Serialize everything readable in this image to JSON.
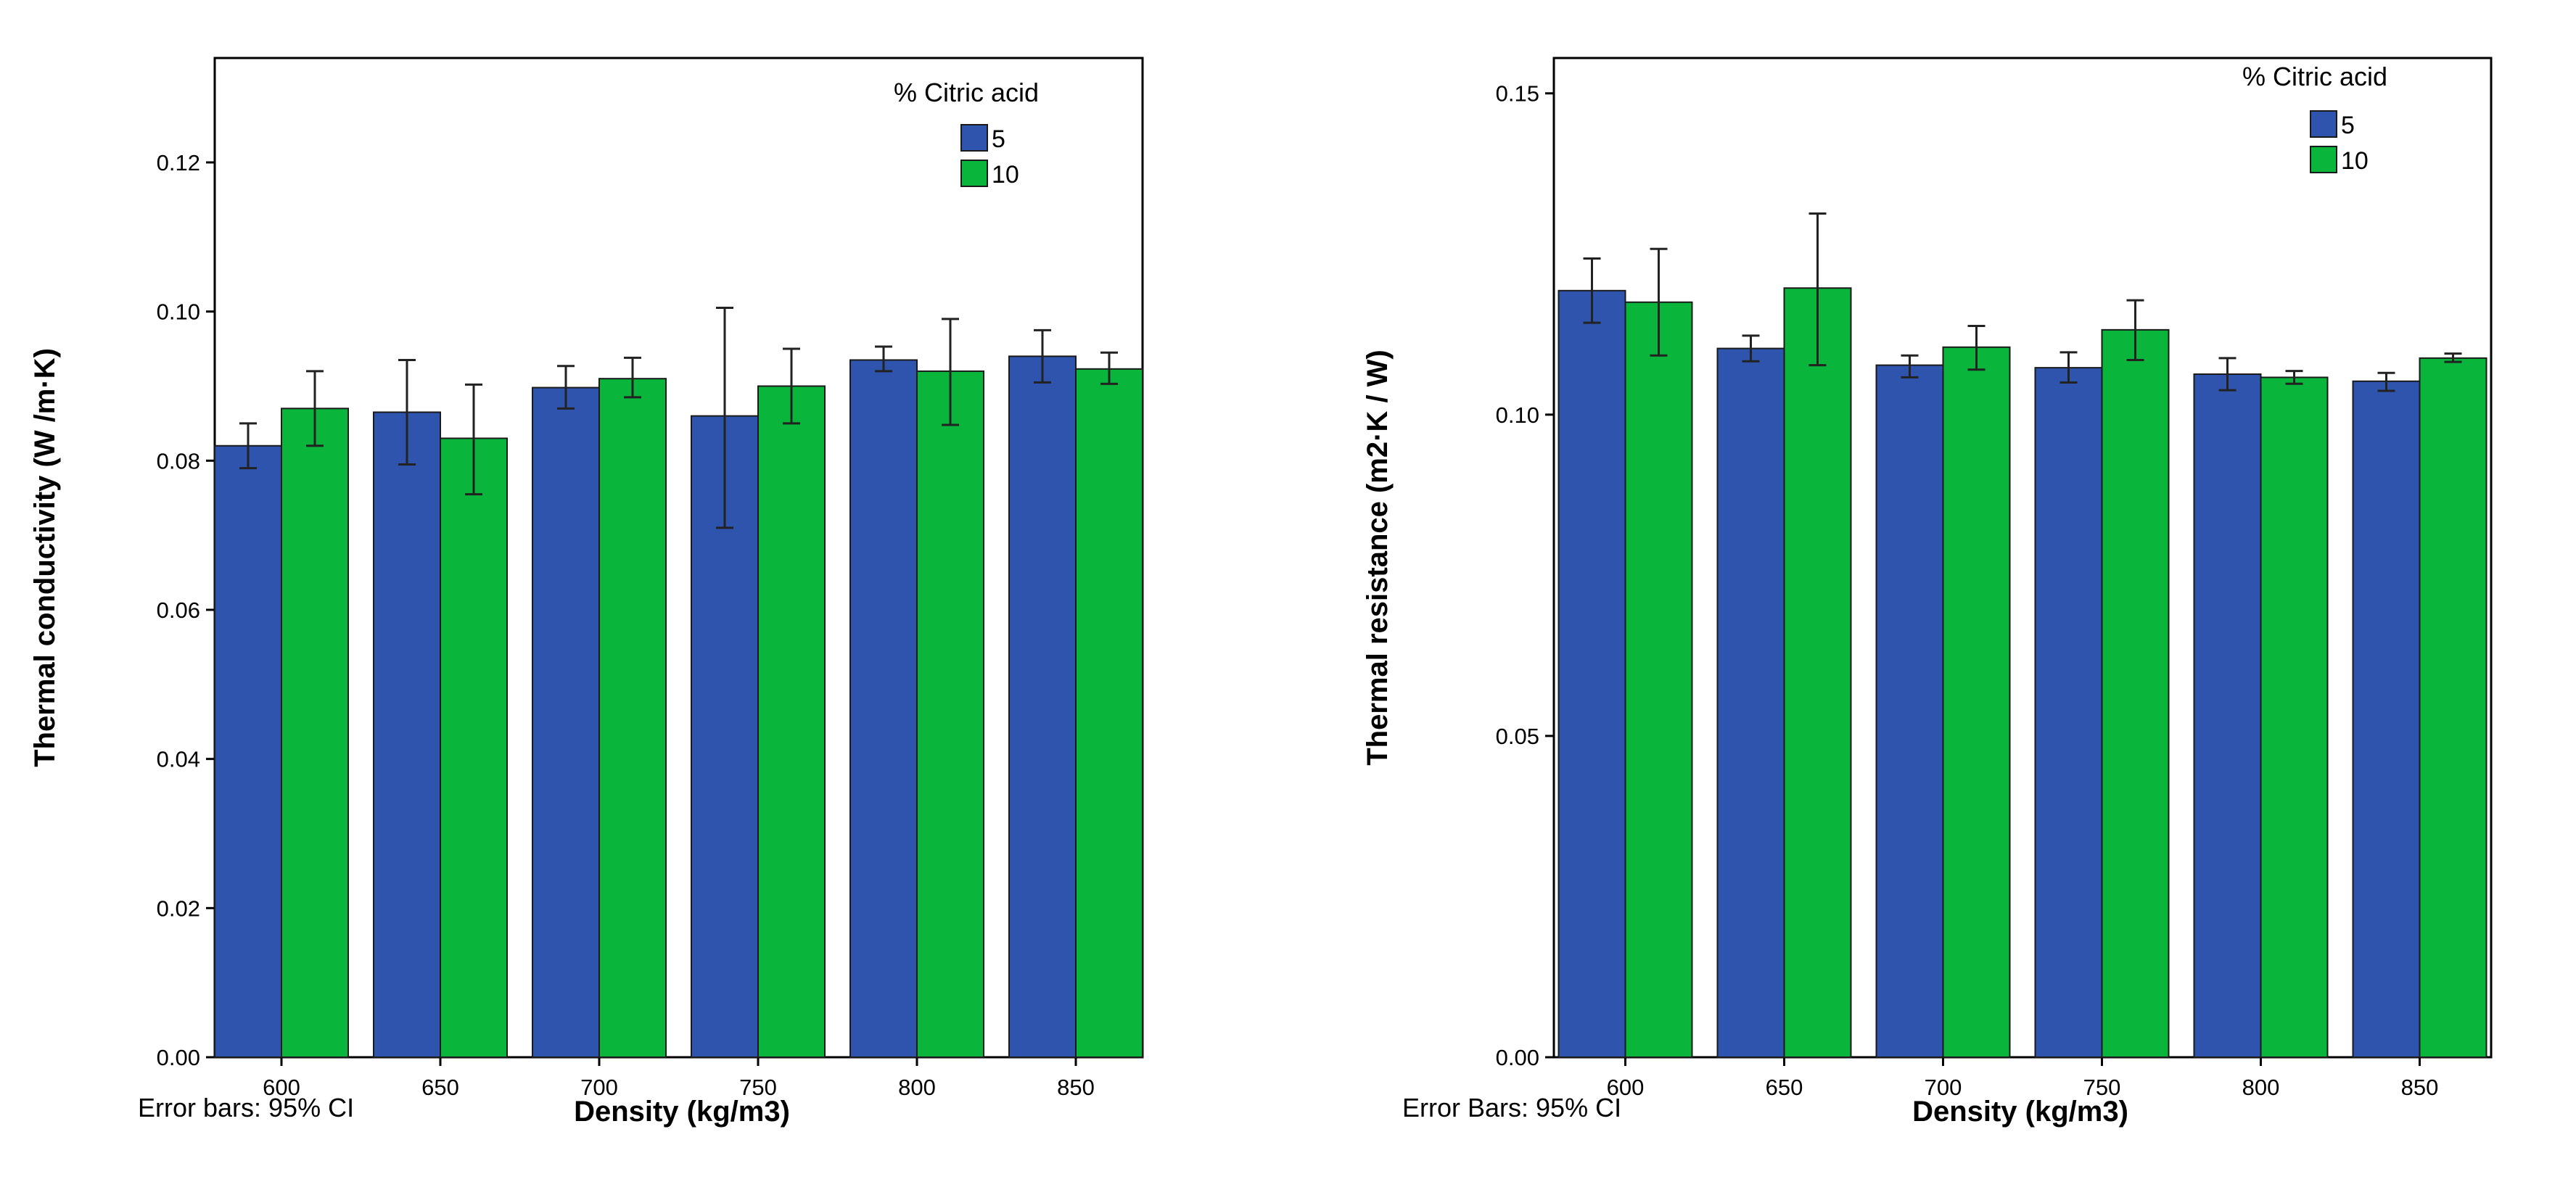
{
  "figure": {
    "panel_count": 2
  },
  "chart_data": [
    {
      "type": "bar",
      "title": "",
      "xlabel": "Density (kg/m3)",
      "ylabel": "Thermal conductivity (W /m·K)",
      "categories": [
        "600",
        "650",
        "700",
        "750",
        "800",
        "850"
      ],
      "ylim": [
        0,
        0.134
      ],
      "yticks": [
        0.0,
        0.02,
        0.04,
        0.06,
        0.08,
        0.1,
        0.12
      ],
      "ytick_labels": [
        "0.00",
        "0.02",
        "0.04",
        "0.06",
        "0.08",
        "0.10",
        "0.12"
      ],
      "grid": false,
      "legend": {
        "title": "% Citric acid",
        "position": "top-right"
      },
      "footnote": "Error bars: 95% CI",
      "series": [
        {
          "name": "5",
          "color": "#2E54AE",
          "values": [
            0.082,
            0.0865,
            0.0898,
            0.086,
            0.0935,
            0.094
          ],
          "ci_low": [
            0.079,
            0.0795,
            0.087,
            0.071,
            0.092,
            0.0905
          ],
          "ci_high": [
            0.085,
            0.0935,
            0.0927,
            0.1005,
            0.0953,
            0.0975
          ]
        },
        {
          "name": "10",
          "color": "#0AB53C",
          "values": [
            0.087,
            0.083,
            0.091,
            0.09,
            0.092,
            0.0923
          ],
          "ci_low": [
            0.082,
            0.0755,
            0.0885,
            0.085,
            0.0848,
            0.0903
          ],
          "ci_high": [
            0.092,
            0.0902,
            0.0938,
            0.095,
            0.099,
            0.0945
          ]
        }
      ]
    },
    {
      "type": "bar",
      "title": "",
      "xlabel": "Density (kg/m3)",
      "ylabel": "Thermal resistance (m2·K / W)",
      "categories": [
        "600",
        "650",
        "700",
        "750",
        "800",
        "850"
      ],
      "ylim": [
        0,
        0.1555
      ],
      "yticks": [
        0.0,
        0.05,
        0.1,
        0.15
      ],
      "ytick_labels": [
        "0.00",
        "0.05",
        "0.10",
        "0.15"
      ],
      "grid": false,
      "legend": {
        "title": "% Citric acid",
        "position": "top-right"
      },
      "footnote": "Error Bars: 95% CI",
      "series": [
        {
          "name": "5",
          "color": "#2E54AE",
          "values": [
            0.1193,
            0.1103,
            0.1077,
            0.1073,
            0.1063,
            0.1052
          ],
          "ci_low": [
            0.1143,
            0.1083,
            0.1058,
            0.105,
            0.1038,
            0.1037
          ],
          "ci_high": [
            0.1243,
            0.1123,
            0.1092,
            0.1097,
            0.1088,
            0.1065
          ]
        },
        {
          "name": "10",
          "color": "#0AB53C",
          "values": [
            0.1175,
            0.1197,
            0.1105,
            0.1132,
            0.1058,
            0.1088
          ],
          "ci_low": [
            0.1092,
            0.1077,
            0.107,
            0.1085,
            0.1048,
            0.1082
          ],
          "ci_high": [
            0.1258,
            0.1313,
            0.1138,
            0.1178,
            0.1068,
            0.1095
          ]
        }
      ]
    }
  ]
}
